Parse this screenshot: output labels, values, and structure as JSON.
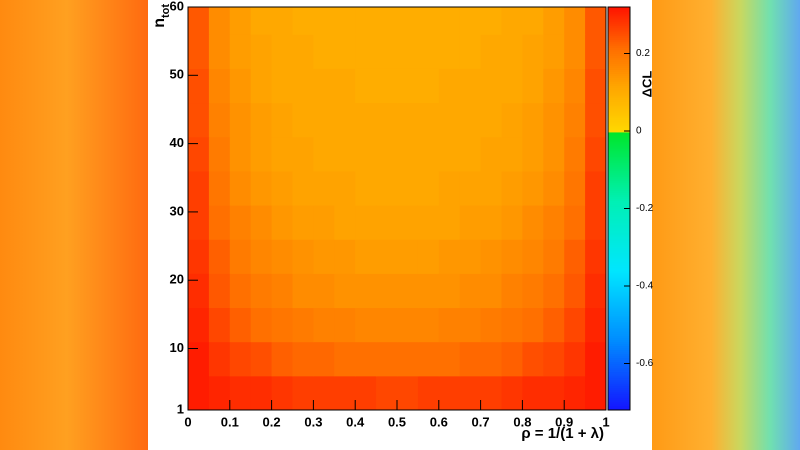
{
  "chart_data": {
    "type": "heatmap",
    "xlabel": "ρ = 1/(1 + λ)",
    "ylabel": {
      "text": "n",
      "subscript": "tot"
    },
    "colorbar_label": "ΔCL",
    "x_bins": [
      0,
      0.05,
      0.1,
      0.15,
      0.2,
      0.25,
      0.3,
      0.35,
      0.4,
      0.45,
      0.5,
      0.55,
      0.6,
      0.65,
      0.7,
      0.75,
      0.8,
      0.85,
      0.9,
      0.95,
      1
    ],
    "y_bins": [
      1,
      6,
      11,
      16,
      21,
      26,
      31,
      36,
      41,
      46,
      51,
      56,
      60
    ],
    "z": [
      [
        0.31,
        0.3,
        0.29,
        0.29,
        0.28,
        0.27,
        0.27,
        0.27,
        0.27,
        0.26,
        0.26,
        0.27,
        0.27,
        0.27,
        0.27,
        0.28,
        0.29,
        0.29,
        0.3,
        0.31
      ],
      [
        0.31,
        0.28,
        0.26,
        0.25,
        0.23,
        0.22,
        0.22,
        0.21,
        0.21,
        0.21,
        0.21,
        0.21,
        0.21,
        0.22,
        0.22,
        0.23,
        0.25,
        0.26,
        0.28,
        0.31
      ],
      [
        0.3,
        0.26,
        0.23,
        0.21,
        0.2,
        0.19,
        0.18,
        0.18,
        0.17,
        0.17,
        0.17,
        0.17,
        0.18,
        0.18,
        0.19,
        0.2,
        0.21,
        0.23,
        0.26,
        0.3
      ],
      [
        0.29,
        0.24,
        0.21,
        0.19,
        0.18,
        0.16,
        0.16,
        0.15,
        0.15,
        0.15,
        0.15,
        0.15,
        0.15,
        0.16,
        0.16,
        0.18,
        0.19,
        0.21,
        0.24,
        0.29
      ],
      [
        0.28,
        0.23,
        0.19,
        0.17,
        0.16,
        0.15,
        0.14,
        0.14,
        0.13,
        0.13,
        0.13,
        0.13,
        0.14,
        0.14,
        0.15,
        0.16,
        0.17,
        0.19,
        0.23,
        0.28
      ],
      [
        0.27,
        0.21,
        0.18,
        0.16,
        0.14,
        0.13,
        0.13,
        0.12,
        0.12,
        0.12,
        0.12,
        0.12,
        0.12,
        0.13,
        0.13,
        0.14,
        0.16,
        0.18,
        0.21,
        0.27
      ],
      [
        0.27,
        0.2,
        0.16,
        0.14,
        0.13,
        0.12,
        0.12,
        0.12,
        0.11,
        0.11,
        0.11,
        0.11,
        0.12,
        0.12,
        0.12,
        0.13,
        0.14,
        0.16,
        0.2,
        0.27
      ],
      [
        0.26,
        0.19,
        0.15,
        0.13,
        0.12,
        0.12,
        0.11,
        0.11,
        0.11,
        0.11,
        0.11,
        0.11,
        0.11,
        0.11,
        0.12,
        0.12,
        0.13,
        0.15,
        0.19,
        0.26
      ],
      [
        0.25,
        0.18,
        0.15,
        0.13,
        0.12,
        0.11,
        0.11,
        0.11,
        0.11,
        0.11,
        0.11,
        0.11,
        0.11,
        0.11,
        0.11,
        0.12,
        0.13,
        0.15,
        0.18,
        0.25
      ],
      [
        0.25,
        0.17,
        0.14,
        0.12,
        0.11,
        0.11,
        0.11,
        0.11,
        0.1,
        0.1,
        0.1,
        0.1,
        0.11,
        0.11,
        0.11,
        0.11,
        0.12,
        0.14,
        0.17,
        0.25
      ],
      [
        0.24,
        0.16,
        0.13,
        0.12,
        0.11,
        0.11,
        0.1,
        0.1,
        0.1,
        0.1,
        0.1,
        0.1,
        0.1,
        0.1,
        0.11,
        0.11,
        0.12,
        0.13,
        0.16,
        0.24
      ],
      [
        0.24,
        0.16,
        0.13,
        0.11,
        0.11,
        0.1,
        0.1,
        0.1,
        0.1,
        0.1,
        0.1,
        0.1,
        0.1,
        0.1,
        0.1,
        0.11,
        0.11,
        0.13,
        0.16,
        0.24
      ]
    ],
    "xlim": [
      0,
      1
    ],
    "ylim": [
      1,
      60
    ],
    "zlim": [
      -0.72,
      0.32
    ],
    "xticks": [
      0,
      0.1,
      0.2,
      0.3,
      0.4,
      0.5,
      0.6,
      0.7,
      0.8,
      0.9,
      1
    ],
    "yticks": [
      1,
      10,
      20,
      30,
      40,
      50,
      60
    ],
    "zticks": [
      0.2,
      0,
      -0.2,
      -0.4,
      -0.6
    ]
  }
}
